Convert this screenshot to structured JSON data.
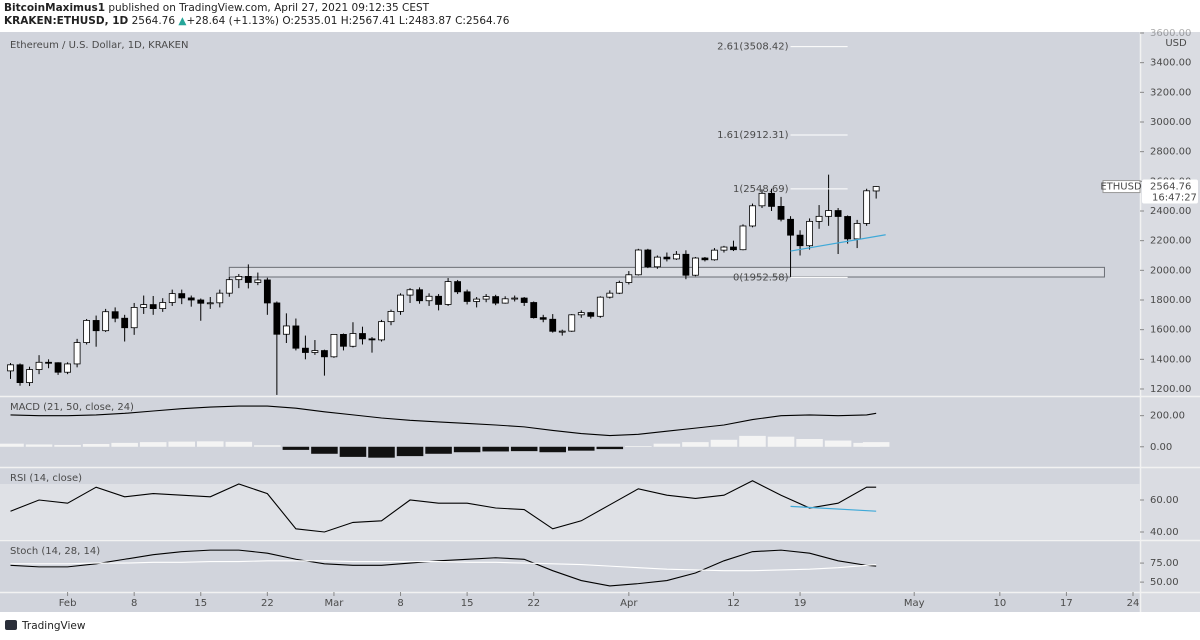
{
  "header": {
    "author": "BitcoinMaximus1",
    "published": "published on TradingView.com, April 27, 2021 09:12:35 CEST",
    "symbol": "KRAKEN:ETHUSD, 1D",
    "arrow": "▲",
    "change": "+28.64 (+1.13%)",
    "o": "O:",
    "h": "H:",
    "l": "L:",
    "c": "C:"
  },
  "footer": {
    "brand": "TradingView"
  },
  "chart_data": [
    {
      "type": "candlestick",
      "title": "Ethereum / U.S. Dollar, 1D, KRAKEN",
      "y_axis_label": "USD",
      "up_color": "#ffffff",
      "down_color": "#000000",
      "x": [
        "2021-01-26",
        "2021-01-27",
        "2021-01-28",
        "2021-01-29",
        "2021-01-30",
        "2021-01-31",
        "2021-02-01",
        "2021-02-02",
        "2021-02-03",
        "2021-02-04",
        "2021-02-05",
        "2021-02-06",
        "2021-02-07",
        "2021-02-08",
        "2021-02-09",
        "2021-02-10",
        "2021-02-11",
        "2021-02-12",
        "2021-02-13",
        "2021-02-14",
        "2021-02-15",
        "2021-02-16",
        "2021-02-17",
        "2021-02-18",
        "2021-02-19",
        "2021-02-20",
        "2021-02-21",
        "2021-02-22",
        "2021-02-23",
        "2021-02-24",
        "2021-02-25",
        "2021-02-26",
        "2021-02-27",
        "2021-02-28",
        "2021-03-01",
        "2021-03-02",
        "2021-03-03",
        "2021-03-04",
        "2021-03-05",
        "2021-03-06",
        "2021-03-07",
        "2021-03-08",
        "2021-03-09",
        "2021-03-10",
        "2021-03-11",
        "2021-03-12",
        "2021-03-13",
        "2021-03-14",
        "2021-03-15",
        "2021-03-16",
        "2021-03-17",
        "2021-03-18",
        "2021-03-19",
        "2021-03-20",
        "2021-03-21",
        "2021-03-22",
        "2021-03-23",
        "2021-03-24",
        "2021-03-25",
        "2021-03-26",
        "2021-03-27",
        "2021-03-28",
        "2021-03-29",
        "2021-03-30",
        "2021-03-31",
        "2021-04-01",
        "2021-04-02",
        "2021-04-03",
        "2021-04-04",
        "2021-04-05",
        "2021-04-06",
        "2021-04-07",
        "2021-04-08",
        "2021-04-09",
        "2021-04-10",
        "2021-04-11",
        "2021-04-12",
        "2021-04-13",
        "2021-04-14",
        "2021-04-15",
        "2021-04-16",
        "2021-04-17",
        "2021-04-18",
        "2021-04-19",
        "2021-04-20",
        "2021-04-21",
        "2021-04-22",
        "2021-04-23",
        "2021-04-24",
        "2021-04-25",
        "2021-04-26",
        "2021-04-27"
      ],
      "open": [
        1322,
        1363,
        1243,
        1331,
        1380,
        1377,
        1313,
        1369,
        1513,
        1662,
        1593,
        1721,
        1677,
        1613,
        1750,
        1769,
        1742,
        1783,
        1843,
        1814,
        1800,
        1778,
        1781,
        1846,
        1937,
        1959,
        1918,
        1935,
        1780,
        1569,
        1625,
        1475,
        1446,
        1459,
        1417,
        1568,
        1488,
        1574,
        1538,
        1531,
        1654,
        1723,
        1833,
        1869,
        1795,
        1825,
        1770,
        1924,
        1855,
        1790,
        1806,
        1823,
        1779,
        1808,
        1813,
        1783,
        1681,
        1670,
        1589,
        1590,
        1700,
        1715,
        1690,
        1819,
        1846,
        1918,
        1970,
        2137,
        2024,
        2089,
        2077,
        2108,
        1967,
        2083,
        2071,
        2136,
        2157,
        2139,
        2299,
        2435,
        2519,
        2431,
        2344,
        2237,
        2166,
        2330,
        2364,
        2403,
        2363,
        2212,
        2316,
        2535.01
      ],
      "high": [
        1375,
        1372,
        1350,
        1428,
        1400,
        1380,
        1380,
        1538,
        1672,
        1695,
        1740,
        1750,
        1700,
        1780,
        1830,
        1827,
        1812,
        1870,
        1870,
        1830,
        1810,
        1820,
        1870,
        1955,
        1975,
        2040,
        1985,
        1950,
        1790,
        1710,
        1675,
        1560,
        1530,
        1465,
        1570,
        1574,
        1650,
        1620,
        1550,
        1666,
        1735,
        1845,
        1880,
        1885,
        1845,
        1840,
        1948,
        1935,
        1870,
        1820,
        1840,
        1835,
        1825,
        1830,
        1820,
        1790,
        1700,
        1705,
        1600,
        1705,
        1730,
        1720,
        1825,
        1865,
        1930,
        1995,
        2145,
        2145,
        2100,
        2120,
        2130,
        2135,
        2090,
        2090,
        2150,
        2165,
        2200,
        2310,
        2450,
        2545,
        2550,
        2495,
        2365,
        2270,
        2350,
        2440,
        2645,
        2420,
        2370,
        2340,
        2550,
        2567.41
      ],
      "low": [
        1268,
        1222,
        1220,
        1300,
        1340,
        1295,
        1300,
        1346,
        1500,
        1485,
        1584,
        1650,
        1520,
        1565,
        1706,
        1700,
        1720,
        1760,
        1772,
        1755,
        1660,
        1740,
        1750,
        1822,
        1880,
        1878,
        1900,
        1700,
        1160,
        1510,
        1460,
        1400,
        1430,
        1290,
        1410,
        1460,
        1480,
        1500,
        1445,
        1520,
        1630,
        1700,
        1780,
        1775,
        1760,
        1730,
        1760,
        1840,
        1770,
        1750,
        1785,
        1765,
        1775,
        1790,
        1760,
        1675,
        1650,
        1580,
        1560,
        1585,
        1680,
        1675,
        1680,
        1810,
        1840,
        1905,
        1965,
        2015,
        2010,
        2060,
        2070,
        1940,
        1960,
        2060,
        2065,
        2120,
        2130,
        2135,
        2290,
        2420,
        2400,
        2330,
        1955,
        2100,
        2140,
        2280,
        2300,
        2110,
        2180,
        2150,
        2300,
        2483.87
      ],
      "close": [
        1363,
        1243,
        1331,
        1380,
        1377,
        1313,
        1369,
        1513,
        1662,
        1593,
        1721,
        1677,
        1613,
        1750,
        1769,
        1742,
        1783,
        1843,
        1814,
        1800,
        1778,
        1781,
        1846,
        1937,
        1959,
        1918,
        1935,
        1780,
        1569,
        1625,
        1475,
        1446,
        1459,
        1417,
        1568,
        1488,
        1574,
        1538,
        1531,
        1654,
        1723,
        1833,
        1869,
        1795,
        1825,
        1770,
        1924,
        1855,
        1790,
        1806,
        1823,
        1779,
        1808,
        1813,
        1783,
        1681,
        1670,
        1589,
        1590,
        1700,
        1715,
        1690,
        1819,
        1846,
        1918,
        1970,
        2137,
        2024,
        2089,
        2077,
        2108,
        1967,
        2083,
        2071,
        2136,
        2157,
        2139,
        2299,
        2435,
        2519,
        2431,
        2344,
        2237,
        2166,
        2330,
        2364,
        2403,
        2363,
        2212,
        2316,
        2536.12,
        2564.76
      ],
      "xlim": [
        "2021-01-25",
        "2021-05-24"
      ],
      "xticks": [
        {
          "value": "2021-02-01",
          "label": "Feb"
        },
        {
          "value": "2021-02-08",
          "label": "8"
        },
        {
          "value": "2021-02-15",
          "label": "15"
        },
        {
          "value": "2021-02-22",
          "label": "22"
        },
        {
          "value": "2021-03-01",
          "label": "Mar"
        },
        {
          "value": "2021-03-08",
          "label": "8"
        },
        {
          "value": "2021-03-15",
          "label": "15"
        },
        {
          "value": "2021-03-22",
          "label": "22"
        },
        {
          "value": "2021-04-01",
          "label": "Apr"
        },
        {
          "value": "2021-04-12",
          "label": "12"
        },
        {
          "value": "2021-04-19",
          "label": "19"
        },
        {
          "value": "2021-05-01",
          "label": "May"
        },
        {
          "value": "2021-05-10",
          "label": "10"
        },
        {
          "value": "2021-05-17",
          "label": "17"
        },
        {
          "value": "2021-05-24",
          "label": "24"
        }
      ],
      "ylim": [
        1150,
        3600
      ],
      "yticks": [
        {
          "value": 1200,
          "label": "1200.00"
        },
        {
          "value": 1400,
          "label": "1400.00"
        },
        {
          "value": 1600,
          "label": "1600.00"
        },
        {
          "value": 1800,
          "label": "1800.00"
        },
        {
          "value": 2000,
          "label": "2000.00"
        },
        {
          "value": 2200,
          "label": "2200.00"
        },
        {
          "value": 2400,
          "label": "2400.00"
        },
        {
          "value": 2600,
          "label": "2600.00"
        },
        {
          "value": 2800,
          "label": "2800.00"
        },
        {
          "value": 3000,
          "label": "3000.00"
        },
        {
          "value": 3200,
          "label": "3200.00"
        },
        {
          "value": 3400,
          "label": "3400.00"
        },
        {
          "value": 3600,
          "label": "3600.00"
        }
      ],
      "grid": false,
      "fib_levels": {
        "x": [
          "2021-04-18",
          "2021-04-24"
        ],
        "levels": [
          {
            "label": "2.61(3508.42)",
            "value": 3508.42
          },
          {
            "label": "1.61(2912.31)",
            "value": 2912.31
          },
          {
            "label": "1(2548.69)",
            "value": 2548.69
          },
          {
            "label": "0(1952.58)",
            "value": 1952.58
          }
        ]
      },
      "zone": {
        "x": [
          "2021-02-18",
          "2021-05-21"
        ],
        "values": [
          1955,
          2020
        ]
      },
      "trendline": {
        "color": "#3fa9d8",
        "x": [
          "2021-04-18",
          "2021-04-28"
        ],
        "values": [
          2130,
          2240
        ]
      },
      "last_price": {
        "symbol": "ETHUSD",
        "countdown": "16:47:27"
      }
    },
    {
      "type": "macd",
      "title": "MACD (21, 50, close, 24)",
      "x": [
        "2021-01-26",
        "2021-01-29",
        "2021-02-01",
        "2021-02-04",
        "2021-02-07",
        "2021-02-10",
        "2021-02-13",
        "2021-02-16",
        "2021-02-19",
        "2021-02-22",
        "2021-02-25",
        "2021-02-28",
        "2021-03-03",
        "2021-03-06",
        "2021-03-09",
        "2021-03-12",
        "2021-03-15",
        "2021-03-18",
        "2021-03-21",
        "2021-03-24",
        "2021-03-27",
        "2021-03-30",
        "2021-04-02",
        "2021-04-05",
        "2021-04-08",
        "2021-04-11",
        "2021-04-14",
        "2021-04-17",
        "2021-04-20",
        "2021-04-23",
        "2021-04-26",
        "2021-04-27"
      ],
      "series": [
        {
          "name": "MACD",
          "color": "#000000",
          "values": [
            205,
            200,
            200,
            205,
            215,
            230,
            245,
            255,
            262,
            262,
            248,
            225,
            205,
            185,
            170,
            160,
            150,
            140,
            128,
            105,
            85,
            72,
            80,
            100,
            120,
            140,
            175,
            200,
            205,
            200,
            205,
            215
          ]
        },
        {
          "name": "Histogram",
          "type": "bar",
          "color": "#f4f4f4",
          "negative_color": "#111111",
          "values": [
            20,
            15,
            12,
            18,
            25,
            30,
            33,
            35,
            32,
            10,
            -20,
            -45,
            -65,
            -70,
            -60,
            -45,
            -35,
            -30,
            -28,
            -35,
            -25,
            -15,
            5,
            20,
            30,
            45,
            70,
            65,
            50,
            40,
            25,
            30
          ]
        }
      ],
      "ylim": [
        -130,
        320
      ],
      "yticks": [
        {
          "value": 0,
          "label": "0.00"
        },
        {
          "value": 200,
          "label": "200.00"
        }
      ]
    },
    {
      "type": "line",
      "title": "RSI (14, close)",
      "x": [
        "2021-01-26",
        "2021-01-29",
        "2021-02-01",
        "2021-02-04",
        "2021-02-07",
        "2021-02-10",
        "2021-02-13",
        "2021-02-16",
        "2021-02-19",
        "2021-02-22",
        "2021-02-25",
        "2021-02-28",
        "2021-03-03",
        "2021-03-06",
        "2021-03-09",
        "2021-03-12",
        "2021-03-15",
        "2021-03-18",
        "2021-03-21",
        "2021-03-24",
        "2021-03-27",
        "2021-03-30",
        "2021-04-02",
        "2021-04-05",
        "2021-04-08",
        "2021-04-11",
        "2021-04-14",
        "2021-04-17",
        "2021-04-20",
        "2021-04-23",
        "2021-04-26",
        "2021-04-27"
      ],
      "series": [
        {
          "name": "RSI",
          "color": "#000000",
          "values": [
            53,
            60,
            58,
            68,
            62,
            64,
            63,
            62,
            70,
            64,
            42,
            40,
            46,
            47,
            60,
            58,
            58,
            55,
            54,
            42,
            47,
            57,
            67,
            63,
            61,
            63,
            72,
            63,
            55,
            58,
            68,
            68
          ]
        }
      ],
      "band": [
        30,
        70
      ],
      "trendline": {
        "color": "#3fa9d8",
        "x": [
          "2021-04-18",
          "2021-04-27"
        ],
        "values": [
          56,
          53
        ]
      },
      "ylim": [
        35,
        80
      ],
      "yticks": [
        {
          "value": 40,
          "label": "40.00"
        },
        {
          "value": 60,
          "label": "60.00"
        }
      ]
    },
    {
      "type": "line",
      "title": "Stoch (14, 28, 14)",
      "x": [
        "2021-01-26",
        "2021-01-29",
        "2021-02-01",
        "2021-02-04",
        "2021-02-07",
        "2021-02-10",
        "2021-02-13",
        "2021-02-16",
        "2021-02-19",
        "2021-02-22",
        "2021-02-25",
        "2021-02-28",
        "2021-03-03",
        "2021-03-06",
        "2021-03-09",
        "2021-03-12",
        "2021-03-15",
        "2021-03-18",
        "2021-03-21",
        "2021-03-24",
        "2021-03-27",
        "2021-03-30",
        "2021-04-02",
        "2021-04-05",
        "2021-04-08",
        "2021-04-11",
        "2021-04-14",
        "2021-04-17",
        "2021-04-20",
        "2021-04-23",
        "2021-04-26",
        "2021-04-27"
      ],
      "series": [
        {
          "name": "%K",
          "color": "#000000",
          "values": [
            72,
            70,
            70,
            74,
            80,
            86,
            90,
            92,
            92,
            88,
            80,
            74,
            72,
            72,
            75,
            78,
            80,
            82,
            80,
            65,
            52,
            45,
            48,
            52,
            62,
            78,
            90,
            92,
            88,
            78,
            72,
            71
          ]
        },
        {
          "name": "%D",
          "color": "#ffffff",
          "values": [
            74,
            74,
            74,
            75,
            75,
            76,
            76,
            77,
            77,
            78,
            78,
            78,
            77,
            77,
            77,
            77,
            76,
            76,
            75,
            74,
            73,
            71,
            69,
            67,
            66,
            65,
            65,
            66,
            67,
            69,
            72,
            73
          ]
        }
      ],
      "ylim": [
        37,
        104
      ],
      "yticks": [
        {
          "value": 50,
          "label": "50.00"
        },
        {
          "value": 75,
          "label": "75.00"
        }
      ]
    }
  ]
}
